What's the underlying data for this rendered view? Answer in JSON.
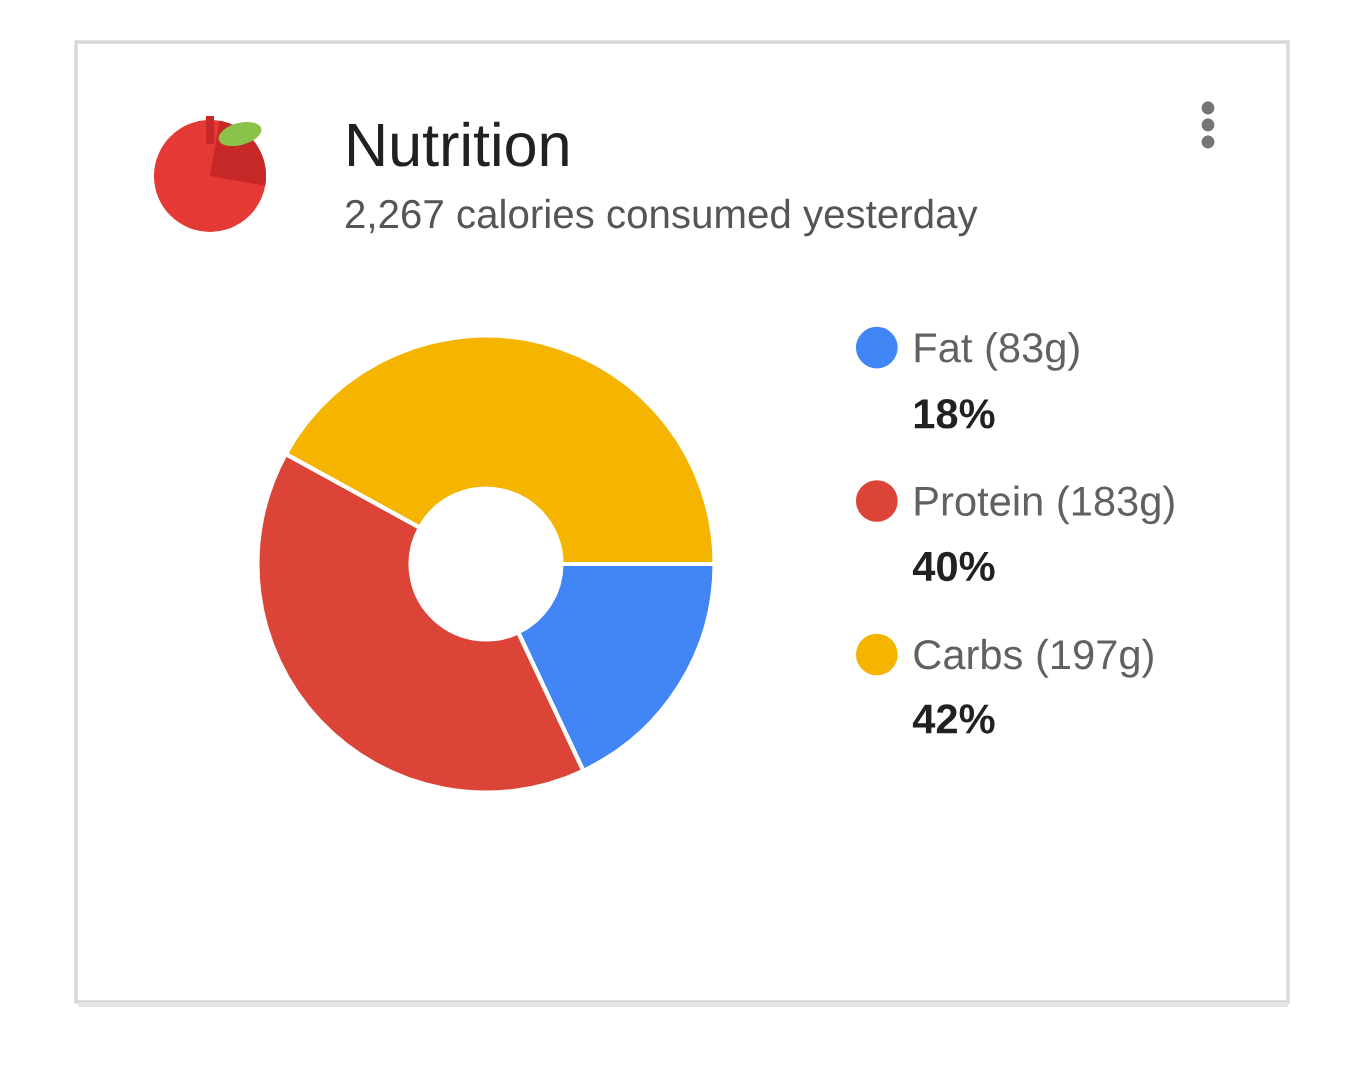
{
  "chart_data": {
    "type": "donut",
    "title": "Nutrition",
    "subtitle": "2,267 calories consumed yesterday",
    "categories": [
      "Fat (83g)",
      "Protein (183g)",
      "Carbs (197g)"
    ],
    "values": [
      18,
      40,
      42
    ],
    "colors": [
      "#4285f4",
      "#db4437",
      "#f4b400"
    ],
    "value_labels": [
      "18%",
      "40%",
      "42%"
    ],
    "legend": "right"
  }
}
